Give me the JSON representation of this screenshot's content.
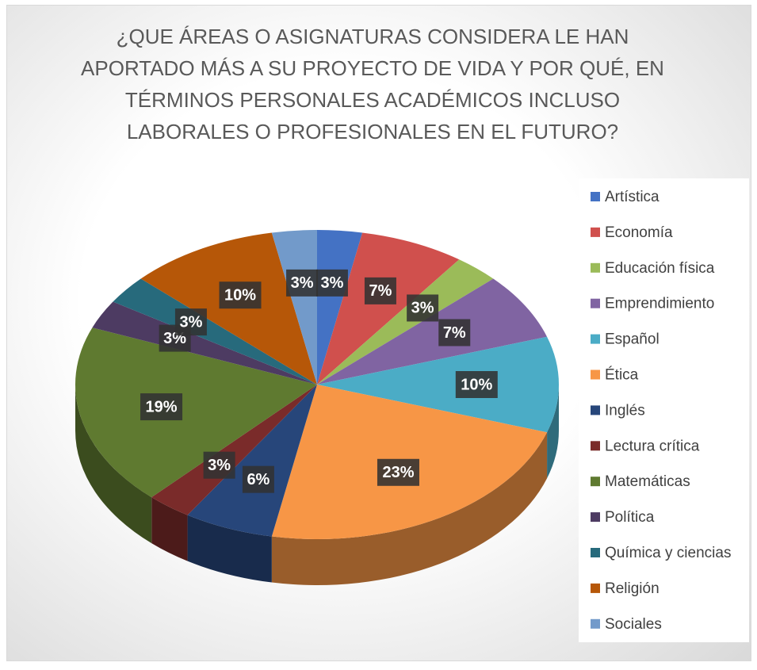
{
  "chart_data": {
    "type": "pie3d",
    "title": "¿QUE ÁREAS O ASIGNATURAS CONSIDERA LE HAN APORTADO MÁS A SU PROYECTO DE VIDA Y POR QUÉ, EN TÉRMINOS PERSONALES ACADÉMICOS INCLUSO LABORALES O PROFESIONALES EN EL FUTURO?",
    "categories": [
      "Artística",
      "Economía",
      "Educación física",
      "Emprendimiento",
      "Español",
      "Ética",
      "Inglés",
      "Lectura crítica",
      "Matemáticas",
      "Política",
      "Química y ciencias",
      "Religión",
      "Sociales"
    ],
    "values": [
      3,
      7,
      3,
      7,
      10,
      23,
      6,
      3,
      19,
      3,
      3,
      10,
      3
    ],
    "value_labels": [
      "3%",
      "7%",
      "3%",
      "7%",
      "10%",
      "23%",
      "6%",
      "3%",
      "19%",
      "3%",
      "3%",
      "10%",
      "3%"
    ],
    "colors": [
      "#4472c4",
      "#d0504d",
      "#9bbb59",
      "#8064a2",
      "#4bacc6",
      "#f79646",
      "#27467a",
      "#7a2b2a",
      "#5f7a30",
      "#4d3b62",
      "#276a7c",
      "#b65708",
      "#729aca"
    ],
    "legend": "right"
  }
}
